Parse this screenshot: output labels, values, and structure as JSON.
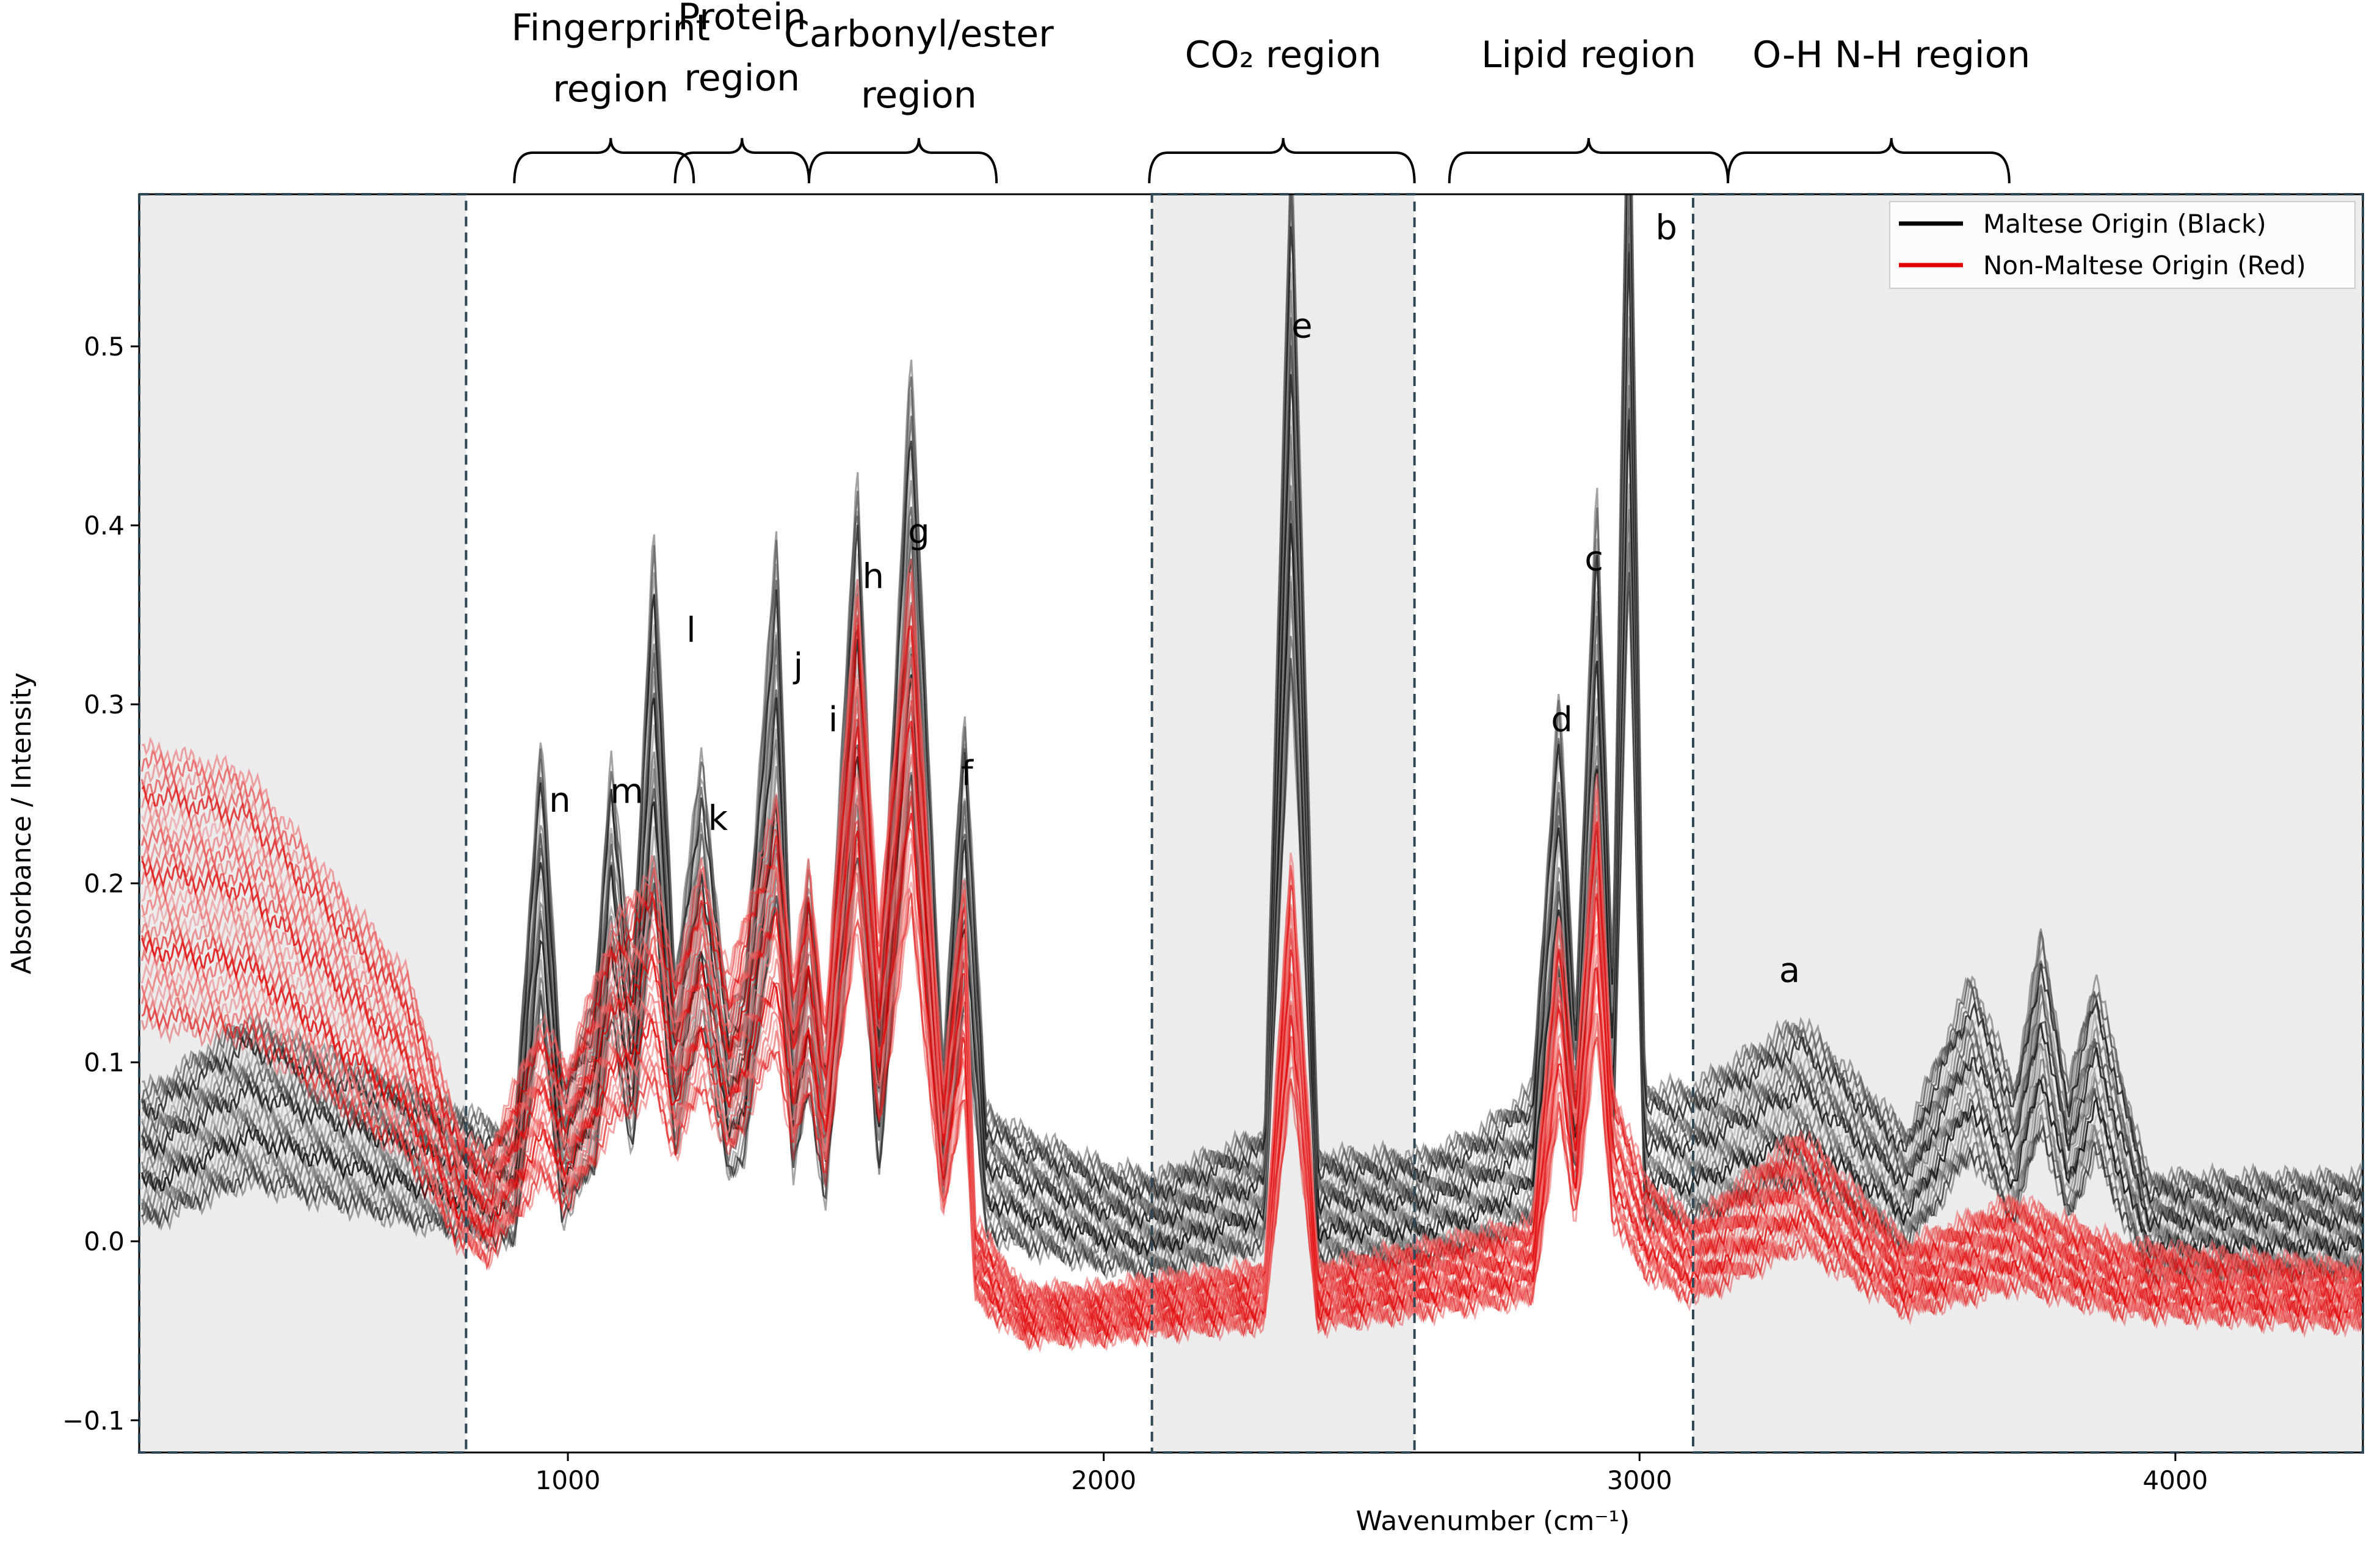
{
  "chart_data": {
    "type": "line",
    "xlabel": "Wavenumber (cm⁻¹)",
    "ylabel": "Absorbance / Intensity",
    "xlim": [
      200,
      4350
    ],
    "ylim": [
      -0.118,
      0.585
    ],
    "xticks": [
      {
        "value": 1000,
        "label": "1000"
      },
      {
        "value": 2000,
        "label": "2000"
      },
      {
        "value": 3000,
        "label": "3000"
      },
      {
        "value": 4000,
        "label": "4000"
      }
    ],
    "yticks": [
      {
        "value": -0.1,
        "label": "−0.1"
      },
      {
        "value": 0.0,
        "label": "0.0"
      },
      {
        "value": 0.1,
        "label": "0.1"
      },
      {
        "value": 0.2,
        "label": "0.2"
      },
      {
        "value": 0.3,
        "label": "0.3"
      },
      {
        "value": 0.4,
        "label": "0.4"
      },
      {
        "value": 0.5,
        "label": "0.5"
      }
    ],
    "legend": {
      "placement": "top-right",
      "entries": [
        {
          "label": "Maltese Origin (Black)",
          "color": "#000000"
        },
        {
          "label": "Non-Maltese Origin (Red)",
          "color": "#e00000"
        }
      ]
    },
    "series": [
      {
        "name": "Maltese Origin (Black)",
        "color": "#000000",
        "points": [
          [
            230,
            0.05
          ],
          [
            400,
            0.08
          ],
          [
            600,
            0.06
          ],
          [
            700,
            0.05
          ],
          [
            800,
            0.04
          ],
          [
            850,
            0.035
          ],
          [
            900,
            0.03
          ],
          [
            950,
            0.21
          ],
          [
            990,
            0.05
          ],
          [
            1050,
            0.09
          ],
          [
            1080,
            0.2
          ],
          [
            1120,
            0.1
          ],
          [
            1160,
            0.3
          ],
          [
            1200,
            0.1
          ],
          [
            1250,
            0.2
          ],
          [
            1300,
            0.08
          ],
          [
            1330,
            0.1
          ],
          [
            1390,
            0.3
          ],
          [
            1420,
            0.08
          ],
          [
            1450,
            0.15
          ],
          [
            1480,
            0.06
          ],
          [
            1540,
            0.33
          ],
          [
            1580,
            0.08
          ],
          [
            1640,
            0.38
          ],
          [
            1700,
            0.06
          ],
          [
            1740,
            0.22
          ],
          [
            1780,
            0.04
          ],
          [
            1850,
            0.03
          ],
          [
            2000,
            0.015
          ],
          [
            2100,
            0.01
          ],
          [
            2300,
            0.03
          ],
          [
            2350,
            0.48
          ],
          [
            2400,
            0.02
          ],
          [
            2600,
            0.02
          ],
          [
            2700,
            0.03
          ],
          [
            2800,
            0.05
          ],
          [
            2850,
            0.23
          ],
          [
            2880,
            0.08
          ],
          [
            2920,
            0.32
          ],
          [
            2950,
            0.1
          ],
          [
            2980,
            0.55
          ],
          [
            3010,
            0.05
          ],
          [
            3100,
            0.05
          ],
          [
            3300,
            0.08
          ],
          [
            3500,
            0.03
          ],
          [
            3620,
            0.1
          ],
          [
            3700,
            0.05
          ],
          [
            3750,
            0.12
          ],
          [
            3800,
            0.05
          ],
          [
            3850,
            0.1
          ],
          [
            3950,
            0.01
          ],
          [
            4330,
            0.01
          ]
        ]
      },
      {
        "name": "Non-Maltese Origin (Red)",
        "color": "#e00000",
        "points": [
          [
            230,
            0.2
          ],
          [
            400,
            0.19
          ],
          [
            500,
            0.16
          ],
          [
            600,
            0.13
          ],
          [
            700,
            0.1
          ],
          [
            800,
            0.03
          ],
          [
            850,
            0.02
          ],
          [
            950,
            0.08
          ],
          [
            1000,
            0.06
          ],
          [
            1080,
            0.12
          ],
          [
            1160,
            0.15
          ],
          [
            1200,
            0.1
          ],
          [
            1250,
            0.15
          ],
          [
            1300,
            0.1
          ],
          [
            1390,
            0.18
          ],
          [
            1420,
            0.1
          ],
          [
            1450,
            0.15
          ],
          [
            1480,
            0.08
          ],
          [
            1540,
            0.28
          ],
          [
            1580,
            0.12
          ],
          [
            1640,
            0.29
          ],
          [
            1700,
            0.05
          ],
          [
            1740,
            0.15
          ],
          [
            1760,
            -0.01
          ],
          [
            1850,
            -0.04
          ],
          [
            2000,
            -0.04
          ],
          [
            2100,
            -0.035
          ],
          [
            2300,
            -0.03
          ],
          [
            2350,
            0.16
          ],
          [
            2400,
            -0.03
          ],
          [
            2600,
            -0.02
          ],
          [
            2800,
            -0.01
          ],
          [
            2850,
            0.13
          ],
          [
            2880,
            0.05
          ],
          [
            2920,
            0.19
          ],
          [
            2950,
            0.05
          ],
          [
            2980,
            0.03
          ],
          [
            3010,
            0.01
          ],
          [
            3100,
            -0.01
          ],
          [
            3300,
            0.03
          ],
          [
            3500,
            -0.02
          ],
          [
            3700,
            0.0
          ],
          [
            3900,
            -0.02
          ],
          [
            4330,
            -0.03
          ]
        ]
      }
    ],
    "shaded_regions": [
      {
        "x": [
          200,
          810
        ],
        "label": ""
      },
      {
        "x": [
          2090,
          2580
        ],
        "label": ""
      },
      {
        "x": [
          3100,
          4350
        ],
        "label": ""
      }
    ],
    "peak_labels": [
      {
        "label": "a",
        "x": 3280,
        "y": 0.145
      },
      {
        "label": "b",
        "x": 3050,
        "y": 0.56
      },
      {
        "label": "c",
        "x": 2915,
        "y": 0.375
      },
      {
        "label": "d",
        "x": 2855,
        "y": 0.285
      },
      {
        "label": "e",
        "x": 2370,
        "y": 0.505
      },
      {
        "label": "f",
        "x": 1745,
        "y": 0.255
      },
      {
        "label": "g",
        "x": 1655,
        "y": 0.39
      },
      {
        "label": "h",
        "x": 1570,
        "y": 0.365
      },
      {
        "label": "i",
        "x": 1495,
        "y": 0.285
      },
      {
        "label": "j",
        "x": 1430,
        "y": 0.315
      },
      {
        "label": "k",
        "x": 1280,
        "y": 0.23
      },
      {
        "label": "l",
        "x": 1230,
        "y": 0.335
      },
      {
        "label": "m",
        "x": 1110,
        "y": 0.245
      },
      {
        "label": "n",
        "x": 985,
        "y": 0.24
      }
    ],
    "region_annotations": [
      {
        "lines": [
          "Fingerprint",
          "region"
        ],
        "x": [
          900,
          1235
        ],
        "center": 1080
      },
      {
        "lines": [
          "Protein",
          "region"
        ],
        "x": [
          1200,
          1450
        ],
        "center": 1325
      },
      {
        "lines": [
          "Carbonyl/ester",
          "region"
        ],
        "x": [
          1450,
          1800
        ],
        "center": 1655
      },
      {
        "lines": [
          "CO₂ region"
        ],
        "x": [
          2085,
          2580
        ],
        "center": 2335
      },
      {
        "lines": [
          "Lipid region"
        ],
        "x": [
          2645,
          3165
        ],
        "center": 2905
      },
      {
        "lines": [
          "O-H N-H region"
        ],
        "x": [
          3165,
          3690
        ],
        "center": 3470
      }
    ]
  }
}
